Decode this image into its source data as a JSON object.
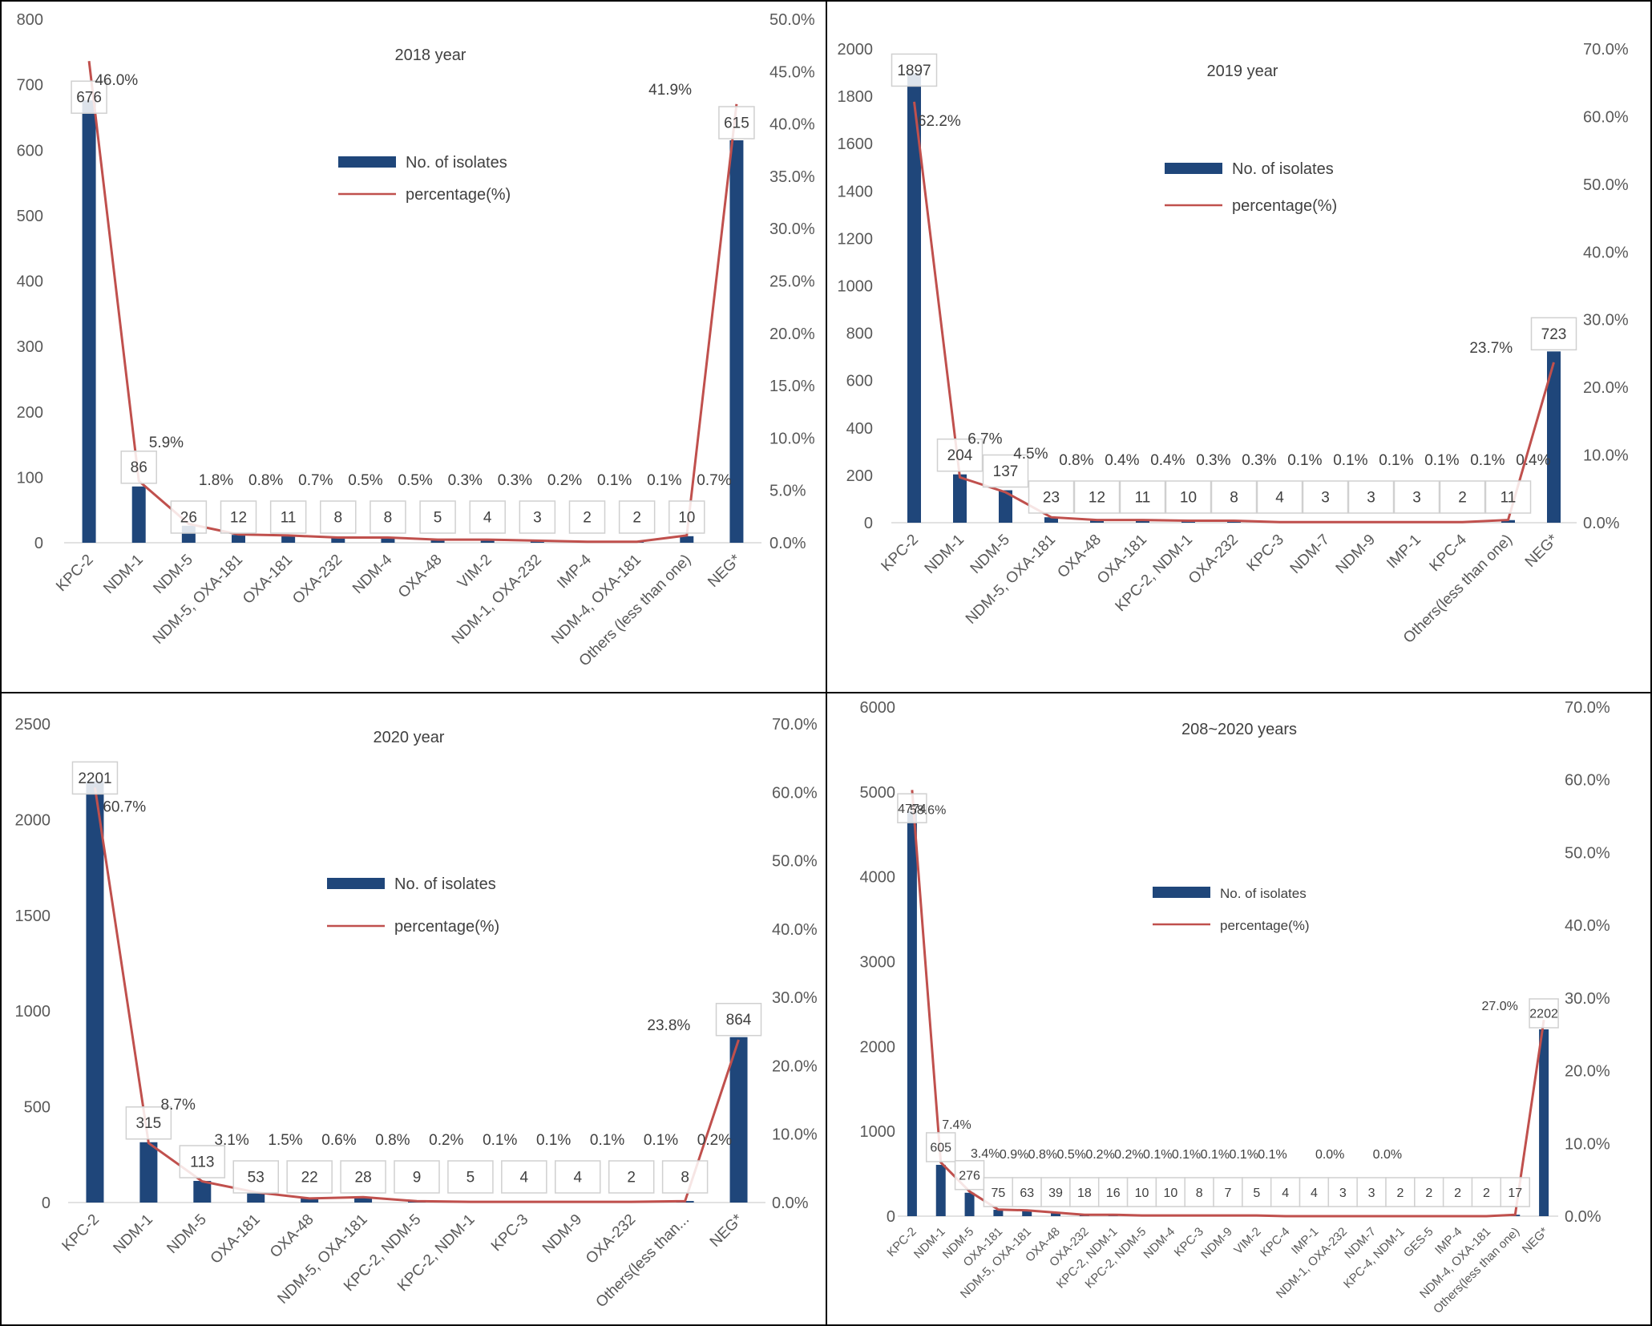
{
  "colors": {
    "bar": "#1f467a",
    "line": "#c0504d",
    "label_box": "#d0d0d0",
    "panel_border": "#000000",
    "leader": "#cccccc"
  },
  "legend": {
    "bar_label": "No. of isolates",
    "line_label": "percentage(%)"
  },
  "chart_data": [
    {
      "type": "bar",
      "title": "2018 year",
      "categories": [
        "KPC-2",
        "NDM-1",
        "NDM-5",
        "NDM-5, OXA-181",
        "OXA-181",
        "OXA-232",
        "NDM-4",
        "OXA-48",
        "VIM-2",
        "NDM-1, OXA-232",
        "IMP-4",
        "NDM-4, OXA-181",
        "Others (less than one)",
        "NEG*"
      ],
      "series": [
        {
          "name": "No. of isolates",
          "axis": "left",
          "values": [
            676,
            86,
            26,
            12,
            11,
            8,
            8,
            5,
            4,
            3,
            2,
            2,
            10,
            615
          ],
          "labels": [
            "676",
            "86",
            "26",
            "12",
            "11",
            "8",
            "8",
            "5",
            "4",
            "3",
            "2",
            "2",
            "10",
            "615"
          ]
        },
        {
          "name": "percentage(%)",
          "axis": "right",
          "values": [
            46.0,
            5.9,
            1.8,
            0.8,
            0.7,
            0.5,
            0.5,
            0.3,
            0.3,
            0.2,
            0.1,
            0.1,
            0.7,
            41.9
          ],
          "labels": [
            "46.0%",
            "5.9%",
            "1.8%",
            "0.8%",
            "0.7%",
            "0.5%",
            "0.5%",
            "0.3%",
            "0.3%",
            "0.2%",
            "0.1%",
            "0.1%",
            "0.7%",
            "41.9%"
          ]
        }
      ],
      "ylim_left": [
        0,
        800
      ],
      "yticks_left": [
        0,
        100,
        200,
        300,
        400,
        500,
        600,
        700,
        800
      ],
      "ytick_labels_left": [
        "0",
        "100",
        "200",
        "300",
        "400",
        "500",
        "600",
        "700",
        "800"
      ],
      "ylim_right": [
        0,
        50
      ],
      "yticks_right": [
        0,
        5,
        10,
        15,
        20,
        25,
        30,
        35,
        40,
        45,
        50
      ],
      "ytick_labels_right": [
        "0.0%",
        "5.0%",
        "10.0%",
        "15.0%",
        "20.0%",
        "25.0%",
        "30.0%",
        "35.0%",
        "40.0%",
        "45.0%",
        "50.0%"
      ]
    },
    {
      "type": "bar",
      "title": "2019 year",
      "categories": [
        "KPC-2",
        "NDM-1",
        "NDM-5",
        "NDM-5, OXA-181",
        "OXA-48",
        "OXA-181",
        "KPC-2, NDM-1",
        "OXA-232",
        "KPC-3",
        "NDM-7",
        "NDM-9",
        "IMP-1",
        "KPC-4",
        "Others(less than one)",
        "NEG*"
      ],
      "series": [
        {
          "name": "No. of isolates",
          "axis": "left",
          "values": [
            1897,
            204,
            137,
            23,
            12,
            11,
            10,
            8,
            4,
            3,
            3,
            3,
            2,
            11,
            723
          ],
          "labels": [
            "1897",
            "204",
            "137",
            "23",
            "12",
            "11",
            "10",
            "8",
            "4",
            "3",
            "3",
            "3",
            "2",
            "11",
            "723"
          ]
        },
        {
          "name": "percentage(%)",
          "axis": "right",
          "values": [
            62.2,
            6.7,
            4.5,
            0.8,
            0.4,
            0.4,
            0.3,
            0.3,
            0.1,
            0.1,
            0.1,
            0.1,
            0.1,
            0.4,
            23.7
          ],
          "labels": [
            "62.2%",
            "6.7%",
            "4.5%",
            "0.8%",
            "0.4%",
            "0.4%",
            "0.3%",
            "0.3%",
            "0.1%",
            "0.1%",
            "0.1%",
            "0.1%",
            "0.1%",
            "0.4%",
            "23.7%"
          ]
        }
      ],
      "ylim_left": [
        0,
        2000
      ],
      "yticks_left": [
        0,
        200,
        400,
        600,
        800,
        1000,
        1200,
        1400,
        1600,
        1800,
        2000
      ],
      "ytick_labels_left": [
        "0",
        "200",
        "400",
        "600",
        "800",
        "1000",
        "1200",
        "1400",
        "1600",
        "1800",
        "2000"
      ],
      "ylim_right": [
        0,
        70
      ],
      "yticks_right": [
        0,
        10,
        20,
        30,
        40,
        50,
        60,
        70
      ],
      "ytick_labels_right": [
        "0.0%",
        "10.0%",
        "20.0%",
        "30.0%",
        "40.0%",
        "50.0%",
        "60.0%",
        "70.0%"
      ]
    },
    {
      "type": "bar",
      "title": "2020 year",
      "categories": [
        "KPC-2",
        "NDM-1",
        "NDM-5",
        "OXA-181",
        "OXA-48",
        "NDM-5, OXA-181",
        "KPC-2, NDM-5",
        "KPC-2, NDM-1",
        "KPC-3",
        "NDM-9",
        "OXA-232",
        "Others(less than...",
        "NEG*"
      ],
      "series": [
        {
          "name": "No. of isolates",
          "axis": "left",
          "values": [
            2201,
            315,
            113,
            53,
            22,
            28,
            9,
            5,
            4,
            4,
            2,
            8,
            864
          ],
          "labels": [
            "2201",
            "315",
            "113",
            "53",
            "22",
            "28",
            "9",
            "5",
            "4",
            "4",
            "2",
            "8",
            "864"
          ]
        },
        {
          "name": "percentage(%)",
          "axis": "right",
          "values": [
            60.7,
            8.7,
            3.1,
            1.5,
            0.6,
            0.8,
            0.2,
            0.1,
            0.1,
            0.1,
            0.1,
            0.2,
            23.8
          ],
          "labels": [
            "60.7%",
            "8.7%",
            "3.1%",
            "1.5%",
            "0.6%",
            "0.8%",
            "0.2%",
            "0.1%",
            "0.1%",
            "0.1%",
            "0.1%",
            "0.2%",
            "23.8%"
          ]
        }
      ],
      "ylim_left": [
        0,
        2500
      ],
      "yticks_left": [
        0,
        500,
        1000,
        1500,
        2000,
        2500
      ],
      "ytick_labels_left": [
        "0",
        "500",
        "1000",
        "1500",
        "2000",
        "2500"
      ],
      "ylim_right": [
        0,
        70
      ],
      "yticks_right": [
        0,
        10,
        20,
        30,
        40,
        50,
        60,
        70
      ],
      "ytick_labels_right": [
        "0.0%",
        "10.0%",
        "20.0%",
        "30.0%",
        "40.0%",
        "50.0%",
        "60.0%",
        "70.0%"
      ]
    },
    {
      "type": "bar",
      "title": "208~2020 years",
      "categories": [
        "KPC-2",
        "NDM-1",
        "NDM-5",
        "OXA-181",
        "NDM-5, OXA-181",
        "OXA-48",
        "OXA-232",
        "KPC-2, NDM-1",
        "KPC-2, NDM-5",
        "NDM-4",
        "KPC-3",
        "NDM-9",
        "VIM-2",
        "KPC-4",
        "IMP-1",
        "NDM-1, OXA-232",
        "NDM-7",
        "KPC-4, NDM-1",
        "GES-5",
        "IMP-4",
        "NDM-4, OXA-181",
        "Others(less than one)",
        "NEG*"
      ],
      "series": [
        {
          "name": "No. of isolates",
          "axis": "left",
          "values": [
            4774,
            605,
            276,
            75,
            63,
            39,
            18,
            16,
            10,
            10,
            8,
            7,
            5,
            4,
            4,
            3,
            3,
            2,
            2,
            2,
            2,
            17,
            2202
          ],
          "labels": [
            "4774",
            "605",
            "276",
            "75",
            "63",
            "39",
            "18",
            "16",
            "10",
            "10",
            "8",
            "7",
            "5",
            "4",
            "4",
            "3",
            "3",
            "2",
            "2",
            "2",
            "2",
            "17",
            "2202"
          ]
        },
        {
          "name": "percentage(%)",
          "axis": "right",
          "values": [
            58.6,
            7.4,
            3.4,
            0.9,
            0.8,
            0.5,
            0.2,
            0.2,
            0.1,
            0.1,
            0.1,
            0.1,
            0.1,
            0.0,
            0.0,
            0.0,
            0.0,
            0.0,
            0.0,
            0.0,
            0.0,
            0.2,
            27.0
          ],
          "labels": [
            "58.6%",
            "7.4%",
            "3.4%",
            "0.9%",
            "0.8%",
            "0.5%",
            "0.2%",
            "0.2%",
            "0.1%",
            "0.1%",
            "0.1%",
            "0.1%",
            "0.1%",
            "",
            "0.0%",
            "",
            "0.0%",
            "",
            "",
            "",
            "",
            "",
            "27.0%"
          ]
        }
      ],
      "ylim_left": [
        0,
        6000
      ],
      "yticks_left": [
        0,
        1000,
        2000,
        3000,
        4000,
        5000,
        6000
      ],
      "ytick_labels_left": [
        "0",
        "1000",
        "2000",
        "3000",
        "4000",
        "5000",
        "6000"
      ],
      "ylim_right": [
        0,
        70
      ],
      "yticks_right": [
        0,
        10,
        20,
        30,
        40,
        50,
        60,
        70
      ],
      "ytick_labels_right": [
        "0.0%",
        "10.0%",
        "20.0%",
        "30.0%",
        "40.0%",
        "50.0%",
        "60.0%",
        "70.0%"
      ]
    }
  ]
}
